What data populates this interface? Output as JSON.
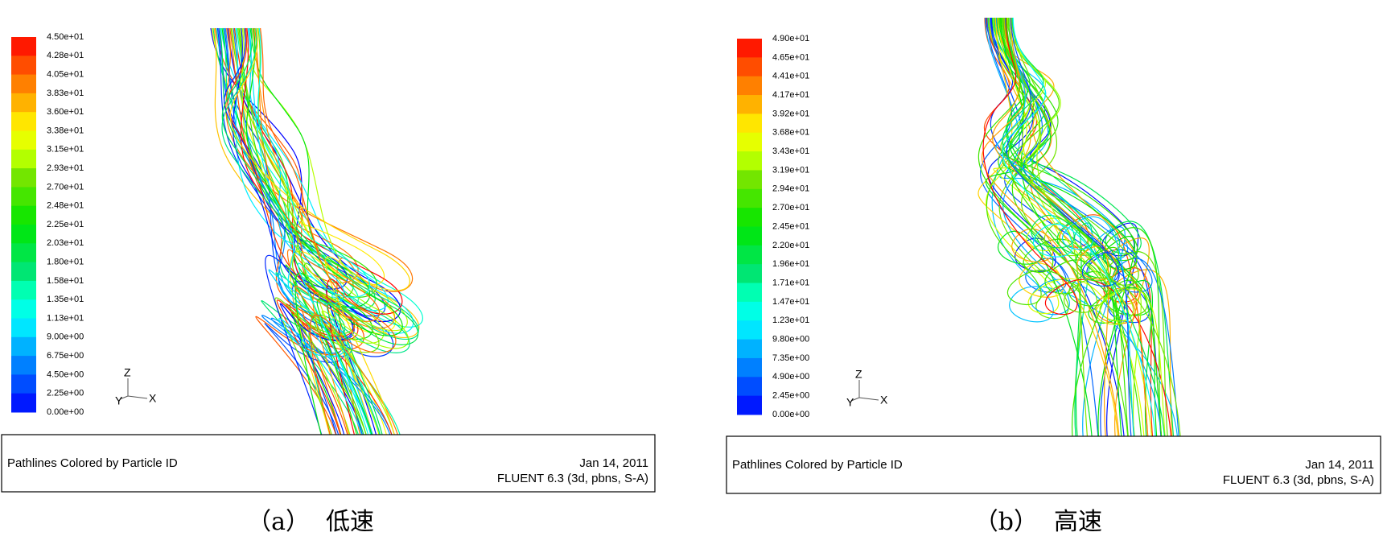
{
  "panels": [
    {
      "legend_labels": [
        "4.50e+01",
        "4.28e+01",
        "4.05e+01",
        "3.83e+01",
        "3.60e+01",
        "3.38e+01",
        "3.15e+01",
        "2.93e+01",
        "2.70e+01",
        "2.48e+01",
        "2.25e+01",
        "2.03e+01",
        "1.80e+01",
        "1.58e+01",
        "1.35e+01",
        "1.13e+01",
        "9.00e+00",
        "6.75e+00",
        "4.50e+00",
        "2.25e+00",
        "0.00e+00"
      ],
      "axis_labels": [
        "Z",
        "Y",
        "X"
      ],
      "footer_left": "Pathlines Colored by Particle ID",
      "date": "Jan 14, 2011",
      "solver": "FLUENT 6.3 (3d, pbns, S-A)",
      "caption_label": "（a）",
      "caption_text": "低速"
    },
    {
      "legend_labels": [
        "4.90e+01",
        "4.65e+01",
        "4.41e+01",
        "4.17e+01",
        "3.92e+01",
        "3.68e+01",
        "3.43e+01",
        "3.19e+01",
        "2.94e+01",
        "2.70e+01",
        "2.45e+01",
        "2.20e+01",
        "1.96e+01",
        "1.71e+01",
        "1.47e+01",
        "1.23e+01",
        "9.80e+00",
        "7.35e+00",
        "4.90e+00",
        "2.45e+00",
        "0.00e+00"
      ],
      "axis_labels": [
        "Z",
        "Y",
        "X"
      ],
      "footer_left": "Pathlines Colored by Particle ID",
      "date": "Jan 14, 2011",
      "solver": "FLUENT 6.3 (3d, pbns, S-A)",
      "caption_label": "（b）",
      "caption_text": "高速"
    }
  ]
}
